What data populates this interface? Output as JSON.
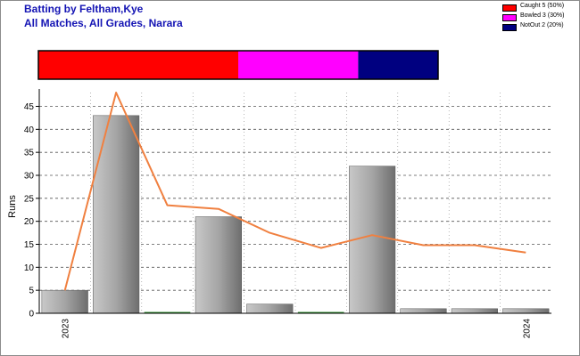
{
  "header": {
    "title_line1": "Batting by Feltham,Kye",
    "title_line2": "All Matches, All Grades, Narara"
  },
  "legend": [
    {
      "label": "Caught 5 (50%)",
      "color": "#ff0000"
    },
    {
      "label": "Bowled 3 (30%)",
      "color": "#ff00ff"
    },
    {
      "label": "NotOut 2 (20%)",
      "color": "#000080"
    }
  ],
  "chart_data": [
    {
      "type": "bar",
      "subtype": "stacked-percentage-strip",
      "segments": [
        {
          "name": "Caught",
          "count": 5,
          "percent": 50,
          "color": "#ff0000"
        },
        {
          "name": "Bowled",
          "count": 3,
          "percent": 30,
          "color": "#ff00ff"
        },
        {
          "name": "NotOut",
          "count": 2,
          "percent": 20,
          "color": "#000080"
        }
      ]
    },
    {
      "type": "bar",
      "ylabel": "Runs",
      "ylim": [
        0,
        48
      ],
      "yticks": [
        0,
        5,
        10,
        15,
        20,
        25,
        30,
        35,
        40,
        45
      ],
      "grid": true,
      "x_tick_labels": [
        {
          "index": 0,
          "label": "2023"
        },
        {
          "index": 9,
          "label": "2024"
        }
      ],
      "bars": [
        5,
        43,
        0,
        21,
        2,
        0,
        32,
        1,
        1,
        1
      ],
      "trend_line": {
        "color": "#f08040",
        "values": [
          5,
          48,
          23.5,
          22.7,
          17.5,
          14.2,
          17,
          14.8,
          14.8,
          13.2
        ]
      }
    }
  ]
}
